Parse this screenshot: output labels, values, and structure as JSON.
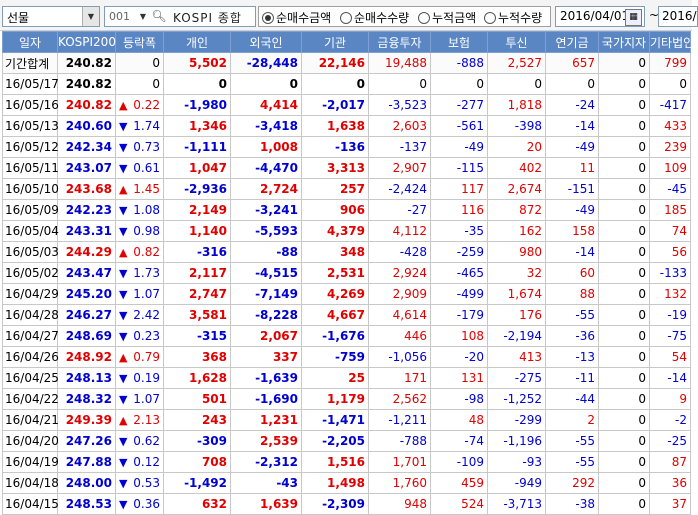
{
  "toolbar": {
    "market": "선물",
    "code": "001",
    "index_name": "KOSPI 종합",
    "options": [
      "순매수금액",
      "순매수수량",
      "누적금액",
      "누적수량"
    ],
    "selected_option": 0,
    "date_from": "2016/04/01",
    "tilde": "~",
    "date_to": "2016/"
  },
  "colors": {
    "up": "#e00000",
    "down": "#0000d0",
    "header_bg": "#5a86c4"
  },
  "columns": [
    "일자",
    "KOSPI200",
    "등락폭",
    "개인",
    "외국인",
    "기관",
    "금융투자",
    "보험",
    "투신",
    "연기금",
    "국가지자",
    "기타법인"
  ],
  "rows": [
    {
      "date": "기간합계",
      "kospi": "240.82",
      "dir": "",
      "chg": "0",
      "v": [
        "5,502",
        "-28,448",
        "22,146",
        "19,488",
        "-888",
        "2,527",
        "657",
        "0",
        "799"
      ]
    },
    {
      "date": "16/05/17",
      "kospi": "240.82",
      "dir": "",
      "chg": "0",
      "v": [
        "0",
        "0",
        "0",
        "0",
        "0",
        "0",
        "0",
        "0",
        "0"
      ]
    },
    {
      "date": "16/05/16",
      "kospi": "240.82",
      "dir": "up",
      "chg": "0.22",
      "v": [
        "-1,980",
        "4,414",
        "-2,017",
        "-3,523",
        "-277",
        "1,818",
        "-24",
        "0",
        "-417"
      ]
    },
    {
      "date": "16/05/13",
      "kospi": "240.60",
      "dir": "down",
      "chg": "1.74",
      "v": [
        "1,346",
        "-3,418",
        "1,638",
        "2,603",
        "-561",
        "-398",
        "-14",
        "0",
        "433"
      ]
    },
    {
      "date": "16/05/12",
      "kospi": "242.34",
      "dir": "down",
      "chg": "0.73",
      "v": [
        "-1,111",
        "1,008",
        "-136",
        "-137",
        "-49",
        "20",
        "-49",
        "0",
        "239"
      ]
    },
    {
      "date": "16/05/11",
      "kospi": "243.07",
      "dir": "down",
      "chg": "0.61",
      "v": [
        "1,047",
        "-4,470",
        "3,313",
        "2,907",
        "-115",
        "402",
        "11",
        "0",
        "109"
      ]
    },
    {
      "date": "16/05/10",
      "kospi": "243.68",
      "dir": "up",
      "chg": "1.45",
      "v": [
        "-2,936",
        "2,724",
        "257",
        "-2,424",
        "117",
        "2,674",
        "-151",
        "0",
        "-45"
      ]
    },
    {
      "date": "16/05/09",
      "kospi": "242.23",
      "dir": "down",
      "chg": "1.08",
      "v": [
        "2,149",
        "-3,241",
        "906",
        "-27",
        "116",
        "872",
        "-49",
        "0",
        "185"
      ]
    },
    {
      "date": "16/05/04",
      "kospi": "243.31",
      "dir": "down",
      "chg": "0.98",
      "v": [
        "1,140",
        "-5,593",
        "4,379",
        "4,112",
        "-35",
        "162",
        "158",
        "0",
        "74"
      ]
    },
    {
      "date": "16/05/03",
      "kospi": "244.29",
      "dir": "up",
      "chg": "0.82",
      "v": [
        "-316",
        "-88",
        "348",
        "-428",
        "-259",
        "980",
        "-14",
        "0",
        "56"
      ]
    },
    {
      "date": "16/05/02",
      "kospi": "243.47",
      "dir": "down",
      "chg": "1.73",
      "v": [
        "2,117",
        "-4,515",
        "2,531",
        "2,924",
        "-465",
        "32",
        "60",
        "0",
        "-133"
      ]
    },
    {
      "date": "16/04/29",
      "kospi": "245.20",
      "dir": "down",
      "chg": "1.07",
      "v": [
        "2,747",
        "-7,149",
        "4,269",
        "2,909",
        "-499",
        "1,674",
        "88",
        "0",
        "132"
      ]
    },
    {
      "date": "16/04/28",
      "kospi": "246.27",
      "dir": "down",
      "chg": "2.42",
      "v": [
        "3,581",
        "-8,228",
        "4,667",
        "4,614",
        "-179",
        "176",
        "-55",
        "0",
        "-19"
      ]
    },
    {
      "date": "16/04/27",
      "kospi": "248.69",
      "dir": "down",
      "chg": "0.23",
      "v": [
        "-315",
        "2,067",
        "-1,676",
        "446",
        "108",
        "-2,194",
        "-36",
        "0",
        "-75"
      ]
    },
    {
      "date": "16/04/26",
      "kospi": "248.92",
      "dir": "up",
      "chg": "0.79",
      "v": [
        "368",
        "337",
        "-759",
        "-1,056",
        "-20",
        "413",
        "-13",
        "0",
        "54"
      ]
    },
    {
      "date": "16/04/25",
      "kospi": "248.13",
      "dir": "down",
      "chg": "0.19",
      "v": [
        "1,628",
        "-1,639",
        "25",
        "171",
        "131",
        "-275",
        "-11",
        "0",
        "-14"
      ]
    },
    {
      "date": "16/04/22",
      "kospi": "248.32",
      "dir": "down",
      "chg": "1.07",
      "v": [
        "501",
        "-1,690",
        "1,179",
        "2,562",
        "-98",
        "-1,252",
        "-44",
        "0",
        "9"
      ]
    },
    {
      "date": "16/04/21",
      "kospi": "249.39",
      "dir": "up",
      "chg": "2.13",
      "v": [
        "243",
        "1,231",
        "-1,471",
        "-1,211",
        "48",
        "-299",
        "2",
        "0",
        "-2"
      ]
    },
    {
      "date": "16/04/20",
      "kospi": "247.26",
      "dir": "down",
      "chg": "0.62",
      "v": [
        "-309",
        "2,539",
        "-2,205",
        "-788",
        "-74",
        "-1,196",
        "-55",
        "0",
        "-25"
      ]
    },
    {
      "date": "16/04/19",
      "kospi": "247.88",
      "dir": "down",
      "chg": "0.12",
      "v": [
        "708",
        "-2,312",
        "1,516",
        "1,701",
        "-109",
        "-93",
        "-55",
        "0",
        "87"
      ]
    },
    {
      "date": "16/04/18",
      "kospi": "248.00",
      "dir": "down",
      "chg": "0.53",
      "v": [
        "-1,492",
        "-43",
        "1,498",
        "1,760",
        "459",
        "-949",
        "292",
        "0",
        "36"
      ]
    },
    {
      "date": "16/04/15",
      "kospi": "248.53",
      "dir": "down",
      "chg": "0.36",
      "v": [
        "632",
        "1,639",
        "-2,309",
        "948",
        "524",
        "-3,713",
        "-38",
        "0",
        "37"
      ]
    }
  ]
}
